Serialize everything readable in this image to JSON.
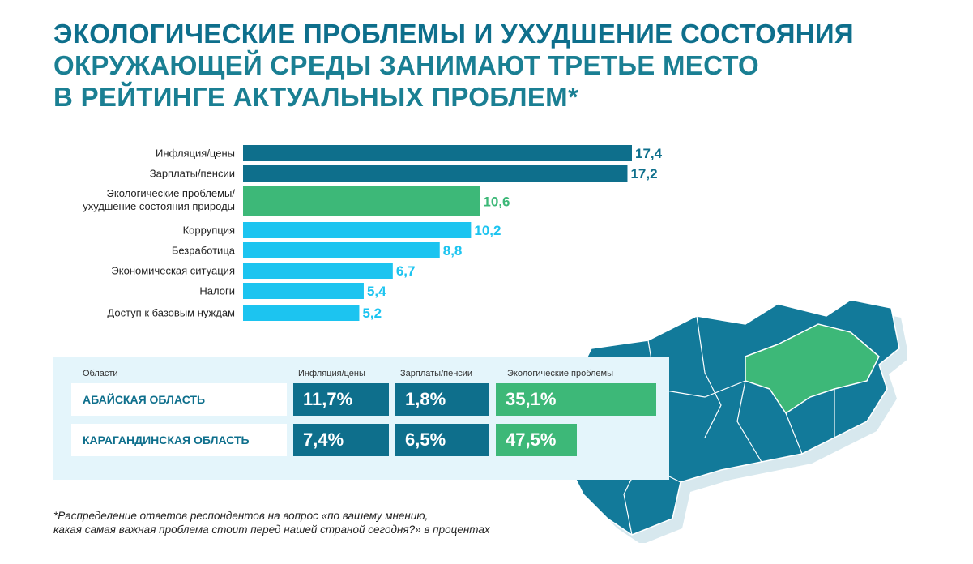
{
  "title": {
    "line1": "ЭКОЛОГИЧЕСКИЕ ПРОБЛЕМЫ И УХУДШЕНИЕ СОСТОЯНИЯ",
    "line2": "ОКРУЖАЮЩЕЙ СРЕДЫ ЗАНИМАЮТ ТРЕТЬЕ МЕСТО",
    "line3": "В РЕЙТИНГЕ АКТУАЛЬНЫХ ПРОБЛЕМ*"
  },
  "colors": {
    "dark": "#0e6f8c",
    "green": "#3db878",
    "light": "#1cc4f0",
    "title": "#1a7f93"
  },
  "chart_data": {
    "type": "bar",
    "orientation": "horizontal",
    "categories": [
      "Инфляция/цены",
      "Зарплаты/пенсии",
      "Экологические проблемы/\nухудшение состояния природы",
      "Коррупция",
      "Безработица",
      "Экономическая ситуация",
      "Налоги",
      "Доступ к базовым нуждам"
    ],
    "values": [
      17.4,
      17.2,
      10.6,
      10.2,
      8.8,
      6.7,
      5.4,
      5.2
    ],
    "value_labels": [
      "17,4",
      "17,2",
      "10,6",
      "10,2",
      "8,8",
      "6,7",
      "5,4",
      "5,2"
    ],
    "bar_colors": [
      "dark",
      "dark",
      "green",
      "light",
      "light",
      "light",
      "light",
      "light"
    ],
    "xlim": [
      0,
      17.4
    ]
  },
  "table": {
    "header_region": "Области",
    "columns": [
      "Инфляция/цены",
      "Зарплаты/пенсии",
      "Экологические проблемы"
    ],
    "rows": [
      {
        "region": "АБАЙСКАЯ ОБЛАСТЬ",
        "values": [
          "11,7%",
          "1,8%",
          "35,1%"
        ]
      },
      {
        "region": "КАРАГАНДИНСКАЯ ОБЛАСТЬ",
        "values": [
          "7,4%",
          "6,5%",
          "47,5%"
        ]
      }
    ]
  },
  "map": {
    "icon": "kazakhstan-map-icon"
  },
  "footnote": {
    "line1": "*Распределение ответов респондентов на вопрос «по вашему мнению,",
    "line2": "какая самая важная проблема стоит перед нашей страной сегодня?» в процентах"
  }
}
